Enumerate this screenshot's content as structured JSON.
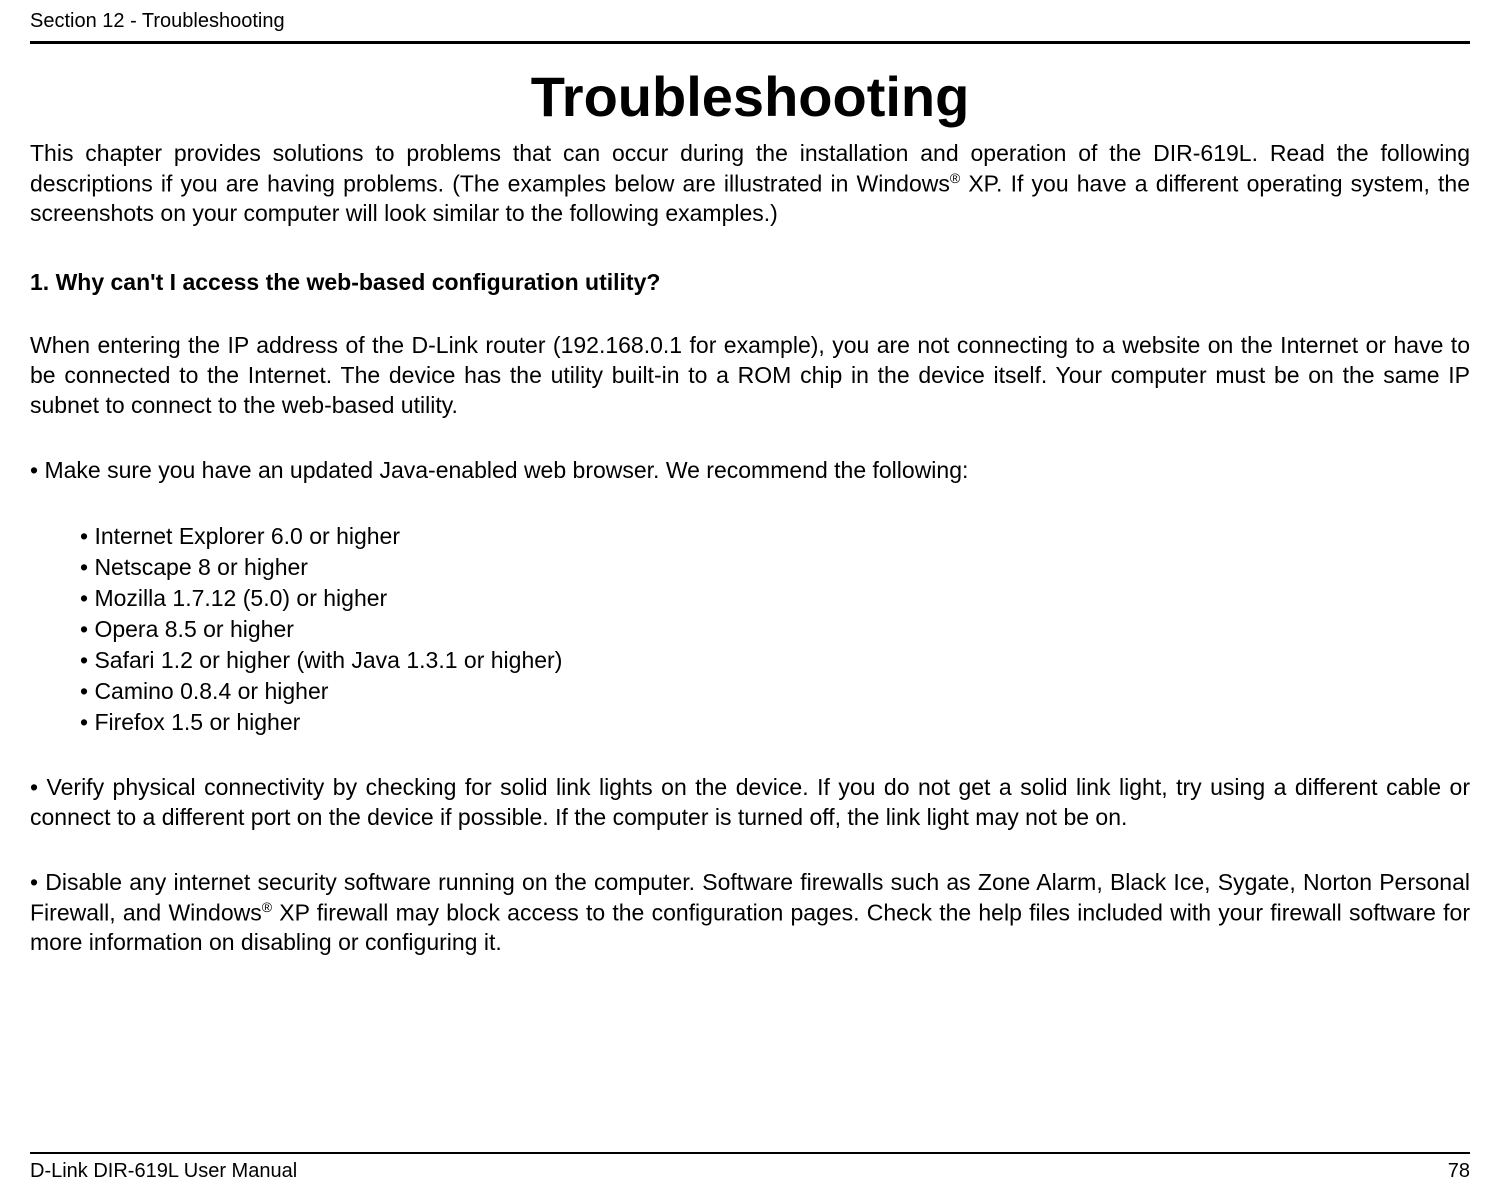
{
  "header": {
    "section_label": "Section 12 - Troubleshooting"
  },
  "title": "Troubleshooting",
  "intro": {
    "text_pre_reg": "This chapter provides solutions to problems that can occur during the installation and operation of the DIR-619L.  Read the following descriptions if you are having problems.  (The examples below are illustrated in Windows",
    "reg_mark": "®",
    "text_post_reg": " XP.  If you have a different operating system, the screenshots on your computer will look similar to the following examples.)"
  },
  "question1": "1. Why can't I access the web-based configuration utility?",
  "para1": "When entering the IP address of the D-Link router (192.168.0.1 for example), you are not connecting to a website on the Internet or have to be connected to the Internet. The device has the utility built-in to a ROM chip in the device itself. Your computer must be on the same IP subnet to connect to the web-based utility.",
  "bullet_lead": "• Make sure you have an updated Java-enabled web browser. We recommend the following:",
  "sub_bullets": [
    "• Internet Explorer 6.0 or higher",
    "• Netscape 8 or higher",
    "• Mozilla 1.7.12 (5.0) or higher",
    "• Opera 8.5 or higher",
    "• Safari 1.2 or higher (with Java 1.3.1 or higher)",
    "• Camino 0.8.4 or higher",
    "• Firefox 1.5 or higher"
  ],
  "bullet2": "• Verify physical connectivity by checking for solid link lights on the device. If you do not get a solid link light, try using a different cable or connect to a different port on the device if possible. If the computer is turned off, the link light may not be on.",
  "bullet3": {
    "pre": "• Disable any internet security software running on the computer. Software firewalls such as Zone Alarm, Black Ice, Sygate, Norton Personal Firewall, and Windows",
    "reg_mark": "®",
    "post": " XP firewall may block access to the configuration pages. Check the help files included with your firewall software for more information on disabling or configuring it."
  },
  "footer": {
    "manual": "D-Link DIR-619L User Manual",
    "page_num": "78"
  }
}
